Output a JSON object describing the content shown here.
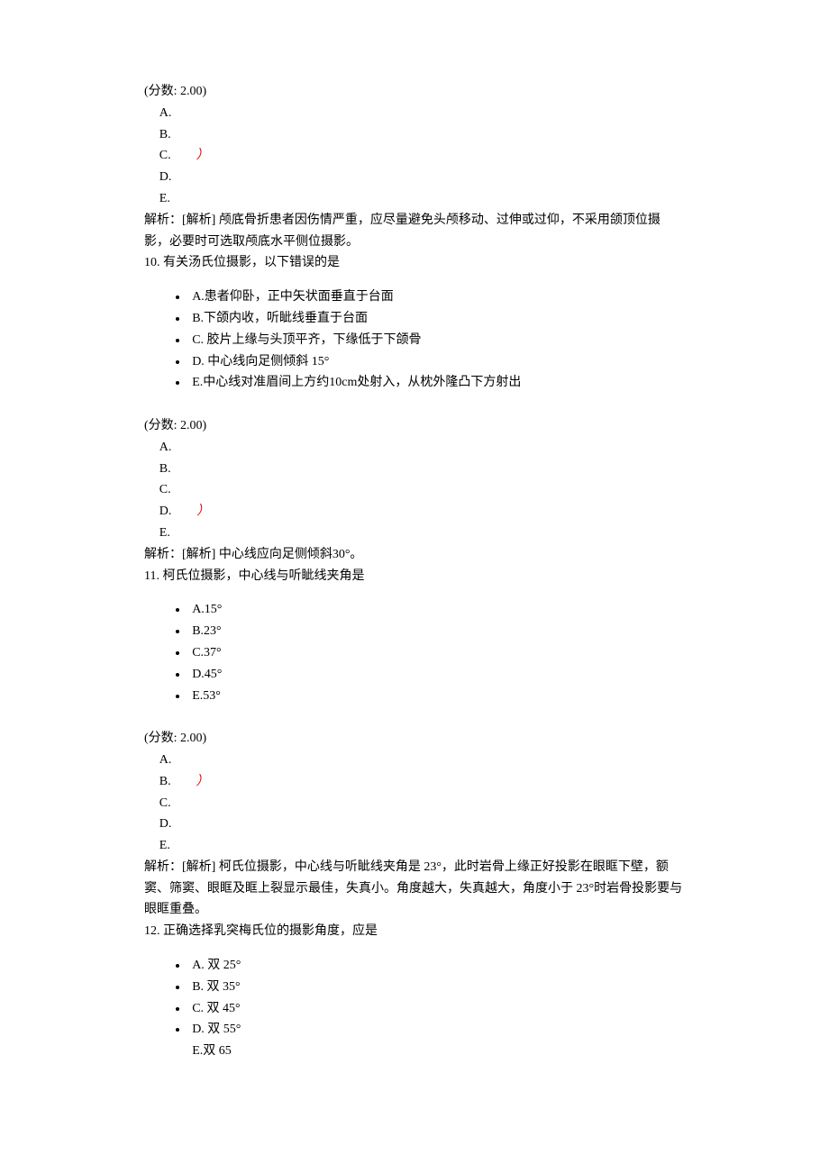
{
  "q9": {
    "score": "(分数: 2.00)",
    "answers": [
      "A.",
      "B.",
      "C.",
      "D.",
      "E."
    ],
    "correct_index": 2,
    "correct_mark": "）",
    "analysis": "解析：[解析] 颅底骨折患者因伤情严重，应尽量避免头颅移动、过伸或过仰，不采用颌顶位摄影，必要时可选取颅底水平侧位摄影。"
  },
  "q10": {
    "stem": "10. 有关汤氏位摄影，以下错误的是",
    "options": [
      "A.患者仰卧，正中矢状面垂直于台面",
      "B.下颌内收，听眦线垂直于台面",
      "C. 胶片上缘与头顶平齐，下缘低于下颌骨",
      "D. 中心线向足侧倾斜 15°",
      "E.中心线对准眉间上方约10cm处射入，从枕外隆凸下方射出"
    ],
    "score": "(分数: 2.00)",
    "answers": [
      "A.",
      "B.",
      "C.",
      "D.",
      "E."
    ],
    "correct_index": 3,
    "correct_mark": "）",
    "analysis": "解析：[解析] 中心线应向足侧倾斜30°。"
  },
  "q11": {
    "stem": "11. 柯氏位摄影，中心线与听眦线夹角是",
    "options": [
      "A.15°",
      "B.23°",
      "C.37°",
      "D.45°",
      "E.53°"
    ],
    "score": "(分数: 2.00)",
    "answers": [
      "A.",
      "B.",
      "C.",
      "D.",
      "E."
    ],
    "correct_index": 1,
    "correct_mark": "）",
    "analysis": "解析：[解析] 柯氏位摄影，中心线与听眦线夹角是 23°，此时岩骨上缘正好投影在眼眶下壁，额窦、筛窦、眼眶及眶上裂显示最佳，失真小。角度越大，失真越大，角度小于 23°时岩骨投影要与眼眶重叠。"
  },
  "q12": {
    "stem": "12. 正确选择乳突梅氏位的摄影角度，应是",
    "options": [
      "A. 双 25°",
      "B. 双 35°",
      "C. 双 45°",
      "D. 双 55°",
      "E.双 65"
    ]
  }
}
